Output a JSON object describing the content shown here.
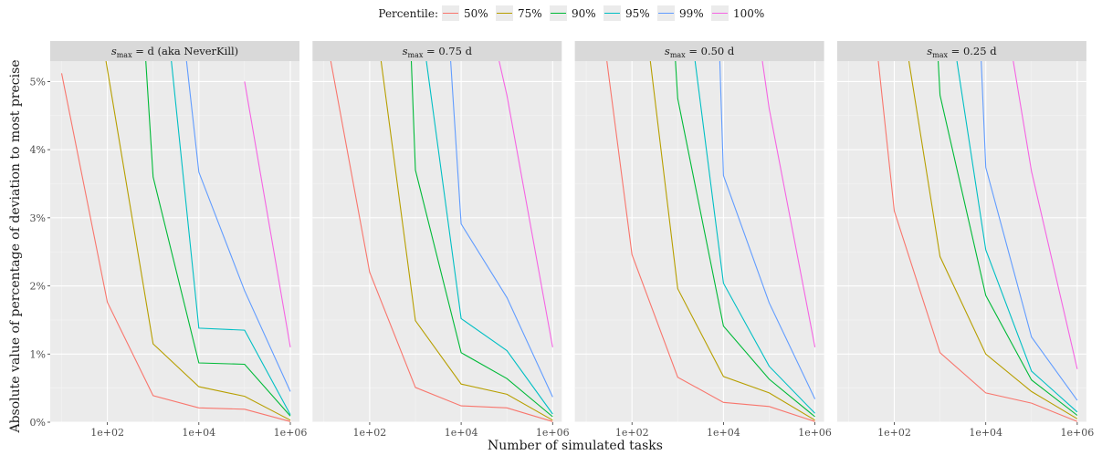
{
  "legend": {
    "title": "Percentile:",
    "items": [
      {
        "label": "50%",
        "color": "#F8766D"
      },
      {
        "label": "75%",
        "color": "#B79F00"
      },
      {
        "label": "90%",
        "color": "#00BA38"
      },
      {
        "label": "95%",
        "color": "#00BFC4"
      },
      {
        "label": "99%",
        "color": "#619CFF"
      },
      {
        "label": "100%",
        "color": "#F564E3"
      }
    ]
  },
  "chart_data": {
    "type": "line",
    "xlabel": "Number of simulated tasks",
    "ylabel": "Absolute value of percentage of deviation to most precise",
    "x_scale": "log10",
    "xlim_log10": [
      0.75,
      6.2
    ],
    "ylim": [
      0,
      5.3
    ],
    "x_ticks": [
      {
        "value": 2,
        "label": "1e+02"
      },
      {
        "value": 4,
        "label": "1e+04"
      },
      {
        "value": 6,
        "label": "1e+06"
      }
    ],
    "y_ticks": [
      {
        "value": 0,
        "label": "0%"
      },
      {
        "value": 1,
        "label": "1%"
      },
      {
        "value": 2,
        "label": "2%"
      },
      {
        "value": 3,
        "label": "3%"
      },
      {
        "value": 4,
        "label": "4%"
      },
      {
        "value": 5,
        "label": "5%"
      }
    ],
    "grid": true,
    "legend_position": "top",
    "panels": [
      {
        "title_parts": {
          "s": "s",
          "sub": "max",
          "rest": " = d (aka NeverKill)"
        },
        "series": [
          {
            "name": "50%",
            "points": [
              [
                1,
                5.12
              ],
              [
                2,
                1.76
              ],
              [
                3,
                0.39
              ],
              [
                4,
                0.21
              ],
              [
                5,
                0.19
              ],
              [
                6,
                0.01
              ]
            ]
          },
          {
            "name": "75%",
            "points": [
              [
                1.97,
                5.3
              ],
              [
                3,
                1.15
              ],
              [
                4,
                0.52
              ],
              [
                5,
                0.38
              ],
              [
                6,
                0.03
              ]
            ]
          },
          {
            "name": "90%",
            "points": [
              [
                2.84,
                5.3
              ],
              [
                3,
                3.6
              ],
              [
                4,
                0.87
              ],
              [
                5,
                0.85
              ],
              [
                6,
                0.09
              ]
            ]
          },
          {
            "name": "95%",
            "points": [
              [
                3.4,
                5.3
              ],
              [
                4,
                1.38
              ],
              [
                5,
                1.35
              ],
              [
                6,
                0.11
              ]
            ]
          },
          {
            "name": "99%",
            "points": [
              [
                3.73,
                5.3
              ],
              [
                4,
                3.67
              ],
              [
                5,
                1.93
              ],
              [
                6,
                0.45
              ]
            ]
          },
          {
            "name": "100%",
            "points": [
              [
                5,
                5.0
              ],
              [
                6,
                1.1
              ]
            ]
          }
        ]
      },
      {
        "title_parts": {
          "s": "s",
          "sub": "max",
          "rest": " = 0.75 d"
        },
        "series": [
          {
            "name": "50%",
            "points": [
              [
                1.15,
                5.3
              ],
              [
                2,
                2.2
              ],
              [
                3,
                0.51
              ],
              [
                4,
                0.24
              ],
              [
                5,
                0.21
              ],
              [
                6,
                0.01
              ]
            ]
          },
          {
            "name": "75%",
            "points": [
              [
                2.25,
                5.3
              ],
              [
                3,
                1.49
              ],
              [
                4,
                0.56
              ],
              [
                5,
                0.41
              ],
              [
                6,
                0.03
              ]
            ]
          },
          {
            "name": "90%",
            "points": [
              [
                2.91,
                5.3
              ],
              [
                3,
                3.7
              ],
              [
                4,
                1.02
              ],
              [
                5,
                0.64
              ],
              [
                6,
                0.08
              ]
            ]
          },
          {
            "name": "95%",
            "points": [
              [
                3.24,
                5.3
              ],
              [
                4,
                1.52
              ],
              [
                5,
                1.05
              ],
              [
                6,
                0.12
              ]
            ]
          },
          {
            "name": "99%",
            "points": [
              [
                3.77,
                5.3
              ],
              [
                4,
                2.91
              ],
              [
                5,
                1.83
              ],
              [
                6,
                0.37
              ]
            ]
          },
          {
            "name": "100%",
            "points": [
              [
                4.83,
                5.3
              ],
              [
                5,
                4.8
              ],
              [
                6,
                1.1
              ]
            ]
          }
        ]
      },
      {
        "title_parts": {
          "s": "s",
          "sub": "max",
          "rest": " = 0.50 d"
        },
        "series": [
          {
            "name": "50%",
            "points": [
              [
                1.45,
                5.3
              ],
              [
                2,
                2.46
              ],
              [
                3,
                0.66
              ],
              [
                4,
                0.29
              ],
              [
                5,
                0.23
              ],
              [
                6,
                0.01
              ]
            ]
          },
          {
            "name": "75%",
            "points": [
              [
                2.4,
                5.3
              ],
              [
                3,
                1.96
              ],
              [
                4,
                0.67
              ],
              [
                5,
                0.43
              ],
              [
                6,
                0.03
              ]
            ]
          },
          {
            "name": "90%",
            "points": [
              [
                2.95,
                5.3
              ],
              [
                3,
                4.75
              ],
              [
                4,
                1.41
              ],
              [
                5,
                0.63
              ],
              [
                6,
                0.08
              ]
            ]
          },
          {
            "name": "95%",
            "points": [
              [
                3.38,
                5.3
              ],
              [
                4,
                2.04
              ],
              [
                5,
                0.82
              ],
              [
                6,
                0.13
              ]
            ]
          },
          {
            "name": "99%",
            "points": [
              [
                3.92,
                5.3
              ],
              [
                4,
                3.62
              ],
              [
                5,
                1.75
              ],
              [
                6,
                0.34
              ]
            ]
          },
          {
            "name": "100%",
            "points": [
              [
                4.85,
                5.3
              ],
              [
                5,
                4.6
              ],
              [
                6,
                1.1
              ]
            ]
          }
        ]
      },
      {
        "title_parts": {
          "s": "s",
          "sub": "max",
          "rest": " = 0.25 d"
        },
        "series": [
          {
            "name": "50%",
            "points": [
              [
                1.65,
                5.3
              ],
              [
                2,
                3.1
              ],
              [
                3,
                1.02
              ],
              [
                4,
                0.43
              ],
              [
                5,
                0.28
              ],
              [
                6,
                0.01
              ]
            ]
          },
          {
            "name": "75%",
            "points": [
              [
                2.32,
                5.3
              ],
              [
                3,
                2.43
              ],
              [
                4,
                1.0
              ],
              [
                5,
                0.45
              ],
              [
                6,
                0.05
              ]
            ]
          },
          {
            "name": "90%",
            "points": [
              [
                2.96,
                5.3
              ],
              [
                3,
                4.8
              ],
              [
                4,
                1.86
              ],
              [
                5,
                0.62
              ],
              [
                6,
                0.1
              ]
            ]
          },
          {
            "name": "95%",
            "points": [
              [
                3.37,
                5.3
              ],
              [
                4,
                2.53
              ],
              [
                5,
                0.75
              ],
              [
                6,
                0.15
              ]
            ]
          },
          {
            "name": "99%",
            "points": [
              [
                3.9,
                5.3
              ],
              [
                4,
                3.74
              ],
              [
                5,
                1.25
              ],
              [
                6,
                0.32
              ]
            ]
          },
          {
            "name": "100%",
            "points": [
              [
                4.6,
                5.3
              ],
              [
                5,
                3.68
              ],
              [
                6,
                0.78
              ]
            ]
          }
        ]
      }
    ]
  }
}
